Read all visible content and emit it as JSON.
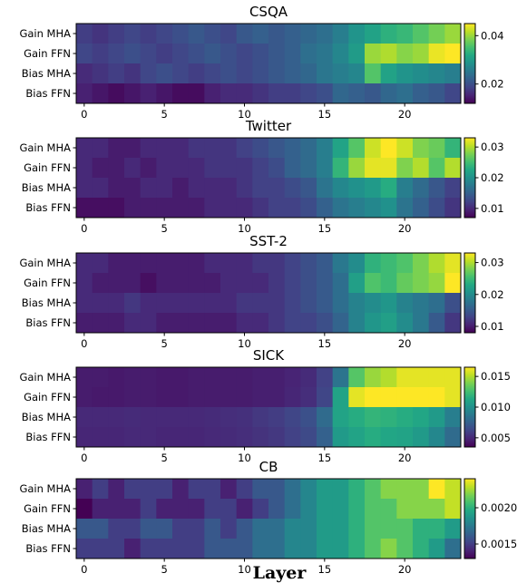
{
  "xlabel": "Layer",
  "chart_data": [
    {
      "type": "heatmap",
      "title": "CSQA",
      "rows": [
        "Gain MHA",
        "Gain FFN",
        "Bias MHA",
        "Bias FFN"
      ],
      "x_ticks": [
        0,
        5,
        10,
        15,
        20
      ],
      "colorbar_ticks": [
        0.02,
        0.04
      ],
      "colorbar_tick_labels": [
        "0.02",
        "0.04"
      ],
      "vmin": 0.012,
      "vmax": 0.045,
      "values": [
        [
          0.018,
          0.017,
          0.018,
          0.019,
          0.018,
          0.019,
          0.02,
          0.021,
          0.02,
          0.019,
          0.021,
          0.022,
          0.021,
          0.022,
          0.023,
          0.024,
          0.026,
          0.029,
          0.031,
          0.033,
          0.034,
          0.036,
          0.038,
          0.04
        ],
        [
          0.019,
          0.018,
          0.019,
          0.02,
          0.019,
          0.018,
          0.019,
          0.02,
          0.021,
          0.02,
          0.019,
          0.02,
          0.021,
          0.022,
          0.024,
          0.025,
          0.027,
          0.03,
          0.04,
          0.041,
          0.039,
          0.04,
          0.044,
          0.045
        ],
        [
          0.016,
          0.017,
          0.018,
          0.017,
          0.019,
          0.02,
          0.019,
          0.018,
          0.019,
          0.02,
          0.019,
          0.02,
          0.021,
          0.022,
          0.023,
          0.025,
          0.026,
          0.027,
          0.036,
          0.031,
          0.029,
          0.028,
          0.027,
          0.026
        ],
        [
          0.015,
          0.014,
          0.013,
          0.014,
          0.015,
          0.014,
          0.013,
          0.013,
          0.015,
          0.016,
          0.016,
          0.017,
          0.018,
          0.018,
          0.019,
          0.02,
          0.023,
          0.022,
          0.021,
          0.023,
          0.024,
          0.022,
          0.021,
          0.019
        ]
      ]
    },
    {
      "type": "heatmap",
      "title": "Twitter",
      "rows": [
        "Gain MHA",
        "Gain FFN",
        "Bias MHA",
        "Bias FFN"
      ],
      "x_ticks": [
        0,
        5,
        10,
        15,
        20
      ],
      "colorbar_ticks": [
        0.01,
        0.02,
        0.03
      ],
      "colorbar_tick_labels": [
        "0.01",
        "0.02",
        "0.03"
      ],
      "vmin": 0.007,
      "vmax": 0.033,
      "values": [
        [
          0.01,
          0.01,
          0.009,
          0.009,
          0.01,
          0.01,
          0.01,
          0.011,
          0.011,
          0.011,
          0.012,
          0.013,
          0.014,
          0.015,
          0.016,
          0.018,
          0.022,
          0.026,
          0.031,
          0.033,
          0.031,
          0.028,
          0.027,
          0.024
        ],
        [
          0.01,
          0.009,
          0.009,
          0.01,
          0.009,
          0.01,
          0.01,
          0.01,
          0.011,
          0.011,
          0.011,
          0.012,
          0.013,
          0.015,
          0.016,
          0.018,
          0.024,
          0.029,
          0.032,
          0.032,
          0.028,
          0.03,
          0.026,
          0.03
        ],
        [
          0.01,
          0.01,
          0.009,
          0.009,
          0.01,
          0.01,
          0.009,
          0.01,
          0.01,
          0.01,
          0.011,
          0.012,
          0.012,
          0.013,
          0.014,
          0.017,
          0.019,
          0.02,
          0.021,
          0.023,
          0.018,
          0.016,
          0.014,
          0.012
        ],
        [
          0.008,
          0.008,
          0.008,
          0.009,
          0.009,
          0.009,
          0.009,
          0.009,
          0.01,
          0.01,
          0.01,
          0.011,
          0.012,
          0.012,
          0.013,
          0.015,
          0.017,
          0.018,
          0.019,
          0.02,
          0.017,
          0.015,
          0.013,
          0.011
        ]
      ]
    },
    {
      "type": "heatmap",
      "title": "SST-2",
      "rows": [
        "Gain MHA",
        "Gain FFN",
        "Bias MHA",
        "Bias FFN"
      ],
      "x_ticks": [
        0,
        5,
        10,
        15,
        20
      ],
      "colorbar_ticks": [
        0.01,
        0.02,
        0.03
      ],
      "colorbar_tick_labels": [
        "0.01",
        "0.02",
        "0.03"
      ],
      "vmin": 0.008,
      "vmax": 0.033,
      "values": [
        [
          0.011,
          0.011,
          0.01,
          0.01,
          0.01,
          0.01,
          0.01,
          0.01,
          0.011,
          0.011,
          0.011,
          0.012,
          0.012,
          0.013,
          0.014,
          0.015,
          0.018,
          0.02,
          0.024,
          0.025,
          0.026,
          0.028,
          0.03,
          0.032
        ],
        [
          0.011,
          0.01,
          0.01,
          0.01,
          0.009,
          0.01,
          0.01,
          0.01,
          0.01,
          0.011,
          0.011,
          0.011,
          0.012,
          0.013,
          0.014,
          0.015,
          0.017,
          0.022,
          0.026,
          0.025,
          0.027,
          0.028,
          0.029,
          0.033
        ],
        [
          0.011,
          0.011,
          0.011,
          0.012,
          0.011,
          0.011,
          0.011,
          0.011,
          0.011,
          0.011,
          0.012,
          0.012,
          0.012,
          0.013,
          0.014,
          0.015,
          0.017,
          0.019,
          0.02,
          0.021,
          0.019,
          0.018,
          0.017,
          0.014
        ],
        [
          0.01,
          0.01,
          0.01,
          0.011,
          0.011,
          0.01,
          0.01,
          0.01,
          0.01,
          0.01,
          0.011,
          0.011,
          0.012,
          0.013,
          0.013,
          0.014,
          0.016,
          0.019,
          0.021,
          0.022,
          0.02,
          0.018,
          0.015,
          0.012
        ]
      ]
    },
    {
      "type": "heatmap",
      "title": "SICK",
      "rows": [
        "Gain MHA",
        "Gain FFN",
        "Bias MHA",
        "Bias FFN"
      ],
      "x_ticks": [
        0,
        5,
        10,
        15,
        20
      ],
      "colorbar_ticks": [
        0.005,
        0.01,
        0.015
      ],
      "colorbar_tick_labels": [
        "0.005",
        "0.010",
        "0.015"
      ],
      "vmin": 0.0035,
      "vmax": 0.0165,
      "values": [
        [
          0.0045,
          0.0045,
          0.0044,
          0.0045,
          0.0045,
          0.0044,
          0.0044,
          0.0045,
          0.0045,
          0.0045,
          0.0045,
          0.0046,
          0.0046,
          0.0048,
          0.0051,
          0.006,
          0.0085,
          0.013,
          0.0145,
          0.015,
          0.016,
          0.016,
          0.016,
          0.016
        ],
        [
          0.0045,
          0.0044,
          0.0044,
          0.0045,
          0.0045,
          0.0044,
          0.0044,
          0.0045,
          0.0045,
          0.0045,
          0.0045,
          0.0046,
          0.0046,
          0.0049,
          0.0052,
          0.0062,
          0.011,
          0.016,
          0.0165,
          0.0165,
          0.0165,
          0.0165,
          0.0165,
          0.016
        ],
        [
          0.005,
          0.005,
          0.005,
          0.0051,
          0.005,
          0.005,
          0.005,
          0.005,
          0.0051,
          0.0052,
          0.0053,
          0.0056,
          0.0058,
          0.0062,
          0.0067,
          0.008,
          0.011,
          0.0115,
          0.012,
          0.0118,
          0.0115,
          0.0112,
          0.0105,
          0.009
        ],
        [
          0.0049,
          0.0049,
          0.0049,
          0.005,
          0.005,
          0.0049,
          0.0049,
          0.0049,
          0.005,
          0.0051,
          0.0052,
          0.0054,
          0.0056,
          0.006,
          0.0064,
          0.0075,
          0.0105,
          0.011,
          0.0115,
          0.0112,
          0.011,
          0.0105,
          0.0095,
          0.008
        ]
      ]
    },
    {
      "type": "heatmap",
      "title": "CB",
      "rows": [
        "Gain MHA",
        "Gain FFN",
        "Bias MHA",
        "Bias FFN"
      ],
      "x_ticks": [
        0,
        5,
        10,
        15,
        20
      ],
      "colorbar_ticks": [
        0.0015,
        0.002
      ],
      "colorbar_tick_labels": [
        "0.0015",
        "0.0020"
      ],
      "vmin": 0.0013,
      "vmax": 0.0024,
      "values": [
        [
          0.0014,
          0.0015,
          0.0014,
          0.0015,
          0.0015,
          0.0015,
          0.0014,
          0.0015,
          0.0015,
          0.0014,
          0.0015,
          0.0016,
          0.0016,
          0.0017,
          0.0018,
          0.0019,
          0.0019,
          0.002,
          0.0021,
          0.0022,
          0.0022,
          0.0022,
          0.0024,
          0.0023
        ],
        [
          0.0013,
          0.0014,
          0.0014,
          0.0014,
          0.0015,
          0.0014,
          0.0014,
          0.0014,
          0.0015,
          0.0015,
          0.0014,
          0.0015,
          0.0016,
          0.0017,
          0.0018,
          0.0019,
          0.0019,
          0.002,
          0.0021,
          0.0021,
          0.0022,
          0.0022,
          0.0022,
          0.0023
        ],
        [
          0.0016,
          0.0016,
          0.0015,
          0.0015,
          0.0016,
          0.0016,
          0.0015,
          0.0015,
          0.0016,
          0.0015,
          0.0016,
          0.0017,
          0.0017,
          0.0018,
          0.0018,
          0.0019,
          0.0019,
          0.002,
          0.0021,
          0.0021,
          0.0021,
          0.002,
          0.002,
          0.0019
        ],
        [
          0.0015,
          0.0015,
          0.0015,
          0.0014,
          0.0015,
          0.0015,
          0.0015,
          0.0015,
          0.0016,
          0.0016,
          0.0016,
          0.0017,
          0.0017,
          0.0018,
          0.0018,
          0.0019,
          0.0019,
          0.002,
          0.0021,
          0.0022,
          0.0021,
          0.002,
          0.0019,
          0.0017
        ]
      ]
    }
  ]
}
